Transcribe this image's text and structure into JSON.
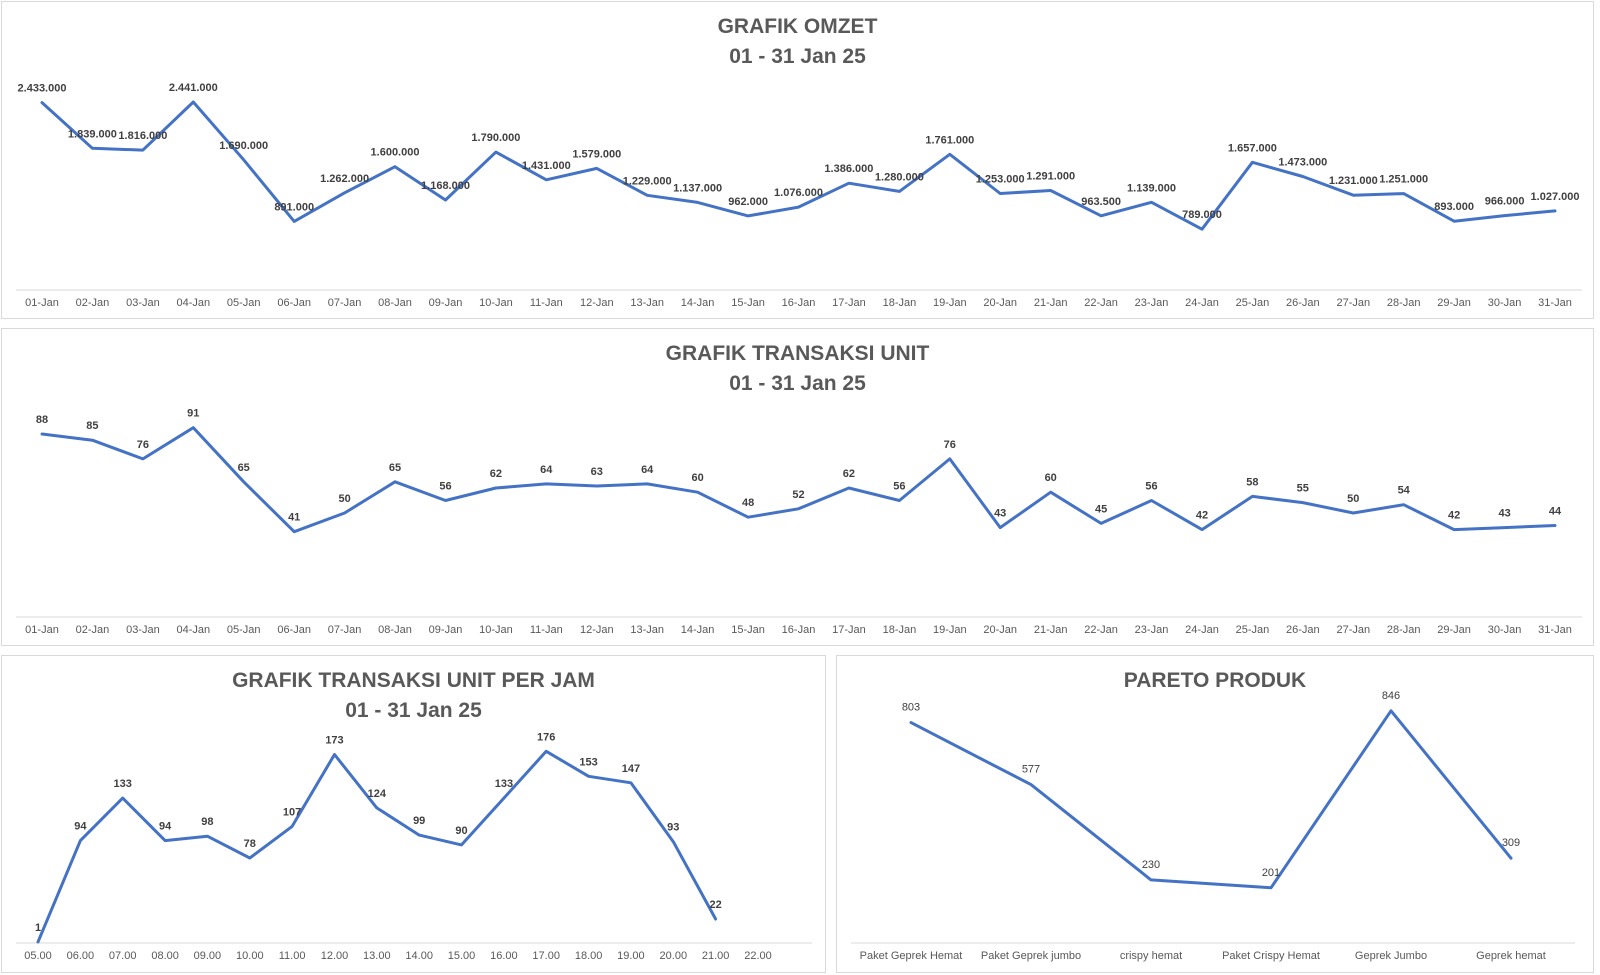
{
  "colors": {
    "line": "#4472c4",
    "axis": "#d9d9d9",
    "title": "#595959",
    "label": "#404040"
  },
  "chart_data": [
    {
      "id": "omzet",
      "type": "line",
      "title": "GRAFIK OMZET",
      "subtitle": "01 - 31 Jan 25",
      "x": [
        "01-Jan",
        "02-Jan",
        "03-Jan",
        "04-Jan",
        "05-Jan",
        "06-Jan",
        "07-Jan",
        "08-Jan",
        "09-Jan",
        "10-Jan",
        "11-Jan",
        "12-Jan",
        "13-Jan",
        "14-Jan",
        "15-Jan",
        "16-Jan",
        "17-Jan",
        "18-Jan",
        "19-Jan",
        "20-Jan",
        "21-Jan",
        "22-Jan",
        "23-Jan",
        "24-Jan",
        "25-Jan",
        "26-Jan",
        "27-Jan",
        "28-Jan",
        "29-Jan",
        "30-Jan",
        "31-Jan"
      ],
      "values": [
        2433000,
        1839000,
        1816000,
        2441000,
        1690000,
        891000,
        1262000,
        1600000,
        1168000,
        1790000,
        1431000,
        1579000,
        1229000,
        1137000,
        962000,
        1076000,
        1386000,
        1280000,
        1761000,
        1253000,
        1291000,
        963500,
        1139000,
        789000,
        1657000,
        1473000,
        1231000,
        1251000,
        893000,
        966000,
        1027000
      ],
      "labels": [
        "2.433.000",
        "1.839.000",
        "1.816.000",
        "2.441.000",
        "1.690.000",
        "891.000",
        "1.262.000",
        "1.600.000",
        "1.168.000",
        "1.790.000",
        "1.431.000",
        "1.579.000",
        "1.229.000",
        "1.137.000",
        "962.000",
        "1.076.000",
        "1.386.000",
        "1.280.000",
        "1.761.000",
        "1.253.000",
        "1.291.000",
        "963.500",
        "1.139.000",
        "789.000",
        "1.657.000",
        "1.473.000",
        "1.231.000",
        "1.251.000",
        "893.000",
        "966.000",
        "1.027.000"
      ],
      "ylim": [
        0,
        2700000
      ],
      "grid": false,
      "legend": "none"
    },
    {
      "id": "unit",
      "type": "line",
      "title": "GRAFIK TRANSAKSI UNIT",
      "subtitle": "01 - 31 Jan 25",
      "x": [
        "01-Jan",
        "02-Jan",
        "03-Jan",
        "04-Jan",
        "05-Jan",
        "06-Jan",
        "07-Jan",
        "08-Jan",
        "09-Jan",
        "10-Jan",
        "11-Jan",
        "12-Jan",
        "13-Jan",
        "14-Jan",
        "15-Jan",
        "16-Jan",
        "17-Jan",
        "18-Jan",
        "19-Jan",
        "20-Jan",
        "21-Jan",
        "22-Jan",
        "23-Jan",
        "24-Jan",
        "25-Jan",
        "26-Jan",
        "27-Jan",
        "28-Jan",
        "29-Jan",
        "30-Jan",
        "31-Jan"
      ],
      "values": [
        88,
        85,
        76,
        91,
        65,
        41,
        50,
        65,
        56,
        62,
        64,
        63,
        64,
        60,
        48,
        52,
        62,
        56,
        76,
        43,
        60,
        45,
        56,
        42,
        58,
        55,
        50,
        54,
        42,
        43,
        44
      ],
      "labels": [
        "88",
        "85",
        "76",
        "91",
        "65",
        "41",
        "50",
        "65",
        "56",
        "62",
        "64",
        "63",
        "64",
        "60",
        "48",
        "52",
        "62",
        "56",
        "76",
        "43",
        "60",
        "45",
        "56",
        "42",
        "58",
        "55",
        "50",
        "54",
        "42",
        "43",
        "44"
      ],
      "ylim": [
        0,
        100
      ],
      "grid": false,
      "legend": "none"
    },
    {
      "id": "jam",
      "type": "line",
      "title": "GRAFIK TRANSAKSI UNIT PER JAM",
      "subtitle": "01 - 31 Jan 25",
      "x": [
        "05.00",
        "06.00",
        "07.00",
        "08.00",
        "09.00",
        "10.00",
        "11.00",
        "12.00",
        "13.00",
        "14.00",
        "15.00",
        "16.00",
        "17.00",
        "18.00",
        "19.00",
        "20.00",
        "21.00",
        "22.00"
      ],
      "values": [
        1,
        94,
        133,
        94,
        98,
        78,
        107,
        173,
        124,
        99,
        90,
        133,
        176,
        153,
        147,
        93,
        22,
        null
      ],
      "labels": [
        "1",
        "94",
        "133",
        "94",
        "98",
        "78",
        "107",
        "173",
        "124",
        "99",
        "90",
        "133",
        "176",
        "153",
        "147",
        "93",
        "22",
        ""
      ],
      "ylim": [
        0,
        190
      ],
      "grid": false,
      "legend": "none"
    },
    {
      "id": "pareto",
      "type": "line",
      "title": "PARETO PRODUK",
      "subtitle": "",
      "x": [
        "Paket Geprek Hemat",
        "Paket Geprek jumbo",
        "crispy hemat",
        "Paket Crispy Hemat",
        "Geprek Jumbo",
        "Geprek hemat"
      ],
      "values": [
        803,
        577,
        230,
        201,
        846,
        309
      ],
      "labels": [
        "803",
        "577",
        "230",
        "201",
        "846",
        "309"
      ],
      "ylim": [
        0,
        900
      ],
      "grid": false,
      "legend": "none"
    }
  ]
}
